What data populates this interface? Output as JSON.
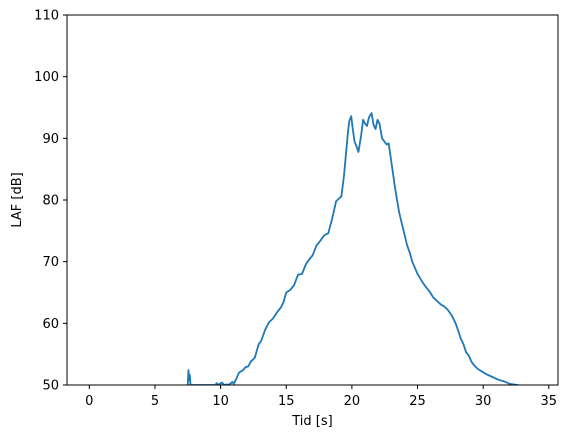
{
  "chart_data": {
    "type": "line",
    "xlabel": "Tid [s]",
    "ylabel": "LAF [dB]",
    "xlim": [
      -1.7,
      35.7
    ],
    "ylim": [
      50,
      110
    ],
    "xticks": [
      0,
      5,
      10,
      15,
      20,
      25,
      30,
      35
    ],
    "yticks": [
      50,
      60,
      70,
      80,
      90,
      100,
      110
    ],
    "grid": false,
    "colors": {
      "line": "#1f77b4",
      "axes": "#000000",
      "background": "#ffffff"
    },
    "series": [
      {
        "x": [
          7.5,
          7.55,
          7.62,
          7.66,
          7.7,
          7.75,
          9.6,
          9.7,
          9.8,
          10.1,
          10.3,
          10.5,
          10.6,
          10.9,
          11.0,
          11.2,
          11.4,
          11.7,
          11.9,
          12.1,
          12.3,
          12.6,
          12.9,
          13.1,
          13.4,
          13.7,
          14.0,
          14.3,
          14.6,
          14.8,
          15.0,
          15.3,
          15.6,
          15.9,
          16.2,
          16.5,
          16.8,
          17.0,
          17.3,
          17.6,
          17.9,
          18.2,
          18.5,
          18.8,
          19.0,
          19.2,
          19.4,
          19.55,
          19.7,
          19.8,
          19.95,
          20.05,
          20.2,
          20.35,
          20.5,
          20.7,
          20.85,
          21.0,
          21.15,
          21.3,
          21.5,
          21.65,
          21.8,
          21.95,
          22.1,
          22.3,
          22.5,
          22.65,
          22.8,
          22.95,
          23.1,
          23.25,
          23.4,
          23.6,
          23.8,
          24.0,
          24.2,
          24.4,
          24.6,
          24.8,
          25.0,
          25.2,
          25.4,
          25.6,
          25.9,
          26.2,
          26.5,
          26.8,
          27.0,
          27.3,
          27.6,
          27.9,
          28.1,
          28.3,
          28.5,
          28.7,
          28.9,
          29.1,
          29.3,
          29.6,
          29.9,
          30.2,
          30.5,
          30.8,
          31.1,
          31.4,
          31.7,
          32.0,
          32.3,
          32.6
        ],
        "y": [
          50,
          52.4,
          50.8,
          51.6,
          50.2,
          50,
          50,
          50.3,
          50,
          50.4,
          50,
          50.1,
          50,
          50.5,
          50.2,
          51.0,
          52.0,
          52.4,
          52.9,
          53.0,
          53.8,
          54.4,
          56.6,
          57.2,
          59.0,
          60.2,
          60.8,
          61.8,
          62.6,
          63.5,
          65.0,
          65.4,
          66.2,
          67.9,
          68.0,
          69.6,
          70.5,
          71.0,
          72.6,
          73.4,
          74.3,
          74.6,
          77.0,
          79.8,
          80.2,
          80.6,
          84.0,
          87.5,
          91.0,
          92.8,
          93.6,
          91.8,
          89.5,
          88.7,
          87.8,
          90.4,
          93.0,
          92.4,
          92.0,
          93.4,
          94.1,
          92.2,
          91.5,
          93.0,
          92.4,
          90.0,
          89.4,
          89.0,
          89.2,
          87.0,
          84.8,
          82.5,
          80.5,
          78.0,
          76.2,
          74.5,
          72.7,
          71.5,
          70.0,
          69.0,
          68.0,
          67.3,
          66.6,
          66.0,
          65.2,
          64.2,
          63.6,
          63.0,
          62.8,
          62.2,
          61.3,
          60.0,
          58.8,
          57.5,
          56.6,
          55.3,
          54.8,
          53.8,
          53.2,
          52.6,
          52.2,
          51.8,
          51.5,
          51.2,
          50.9,
          50.7,
          50.5,
          50.2,
          50.1,
          50
        ]
      }
    ]
  }
}
